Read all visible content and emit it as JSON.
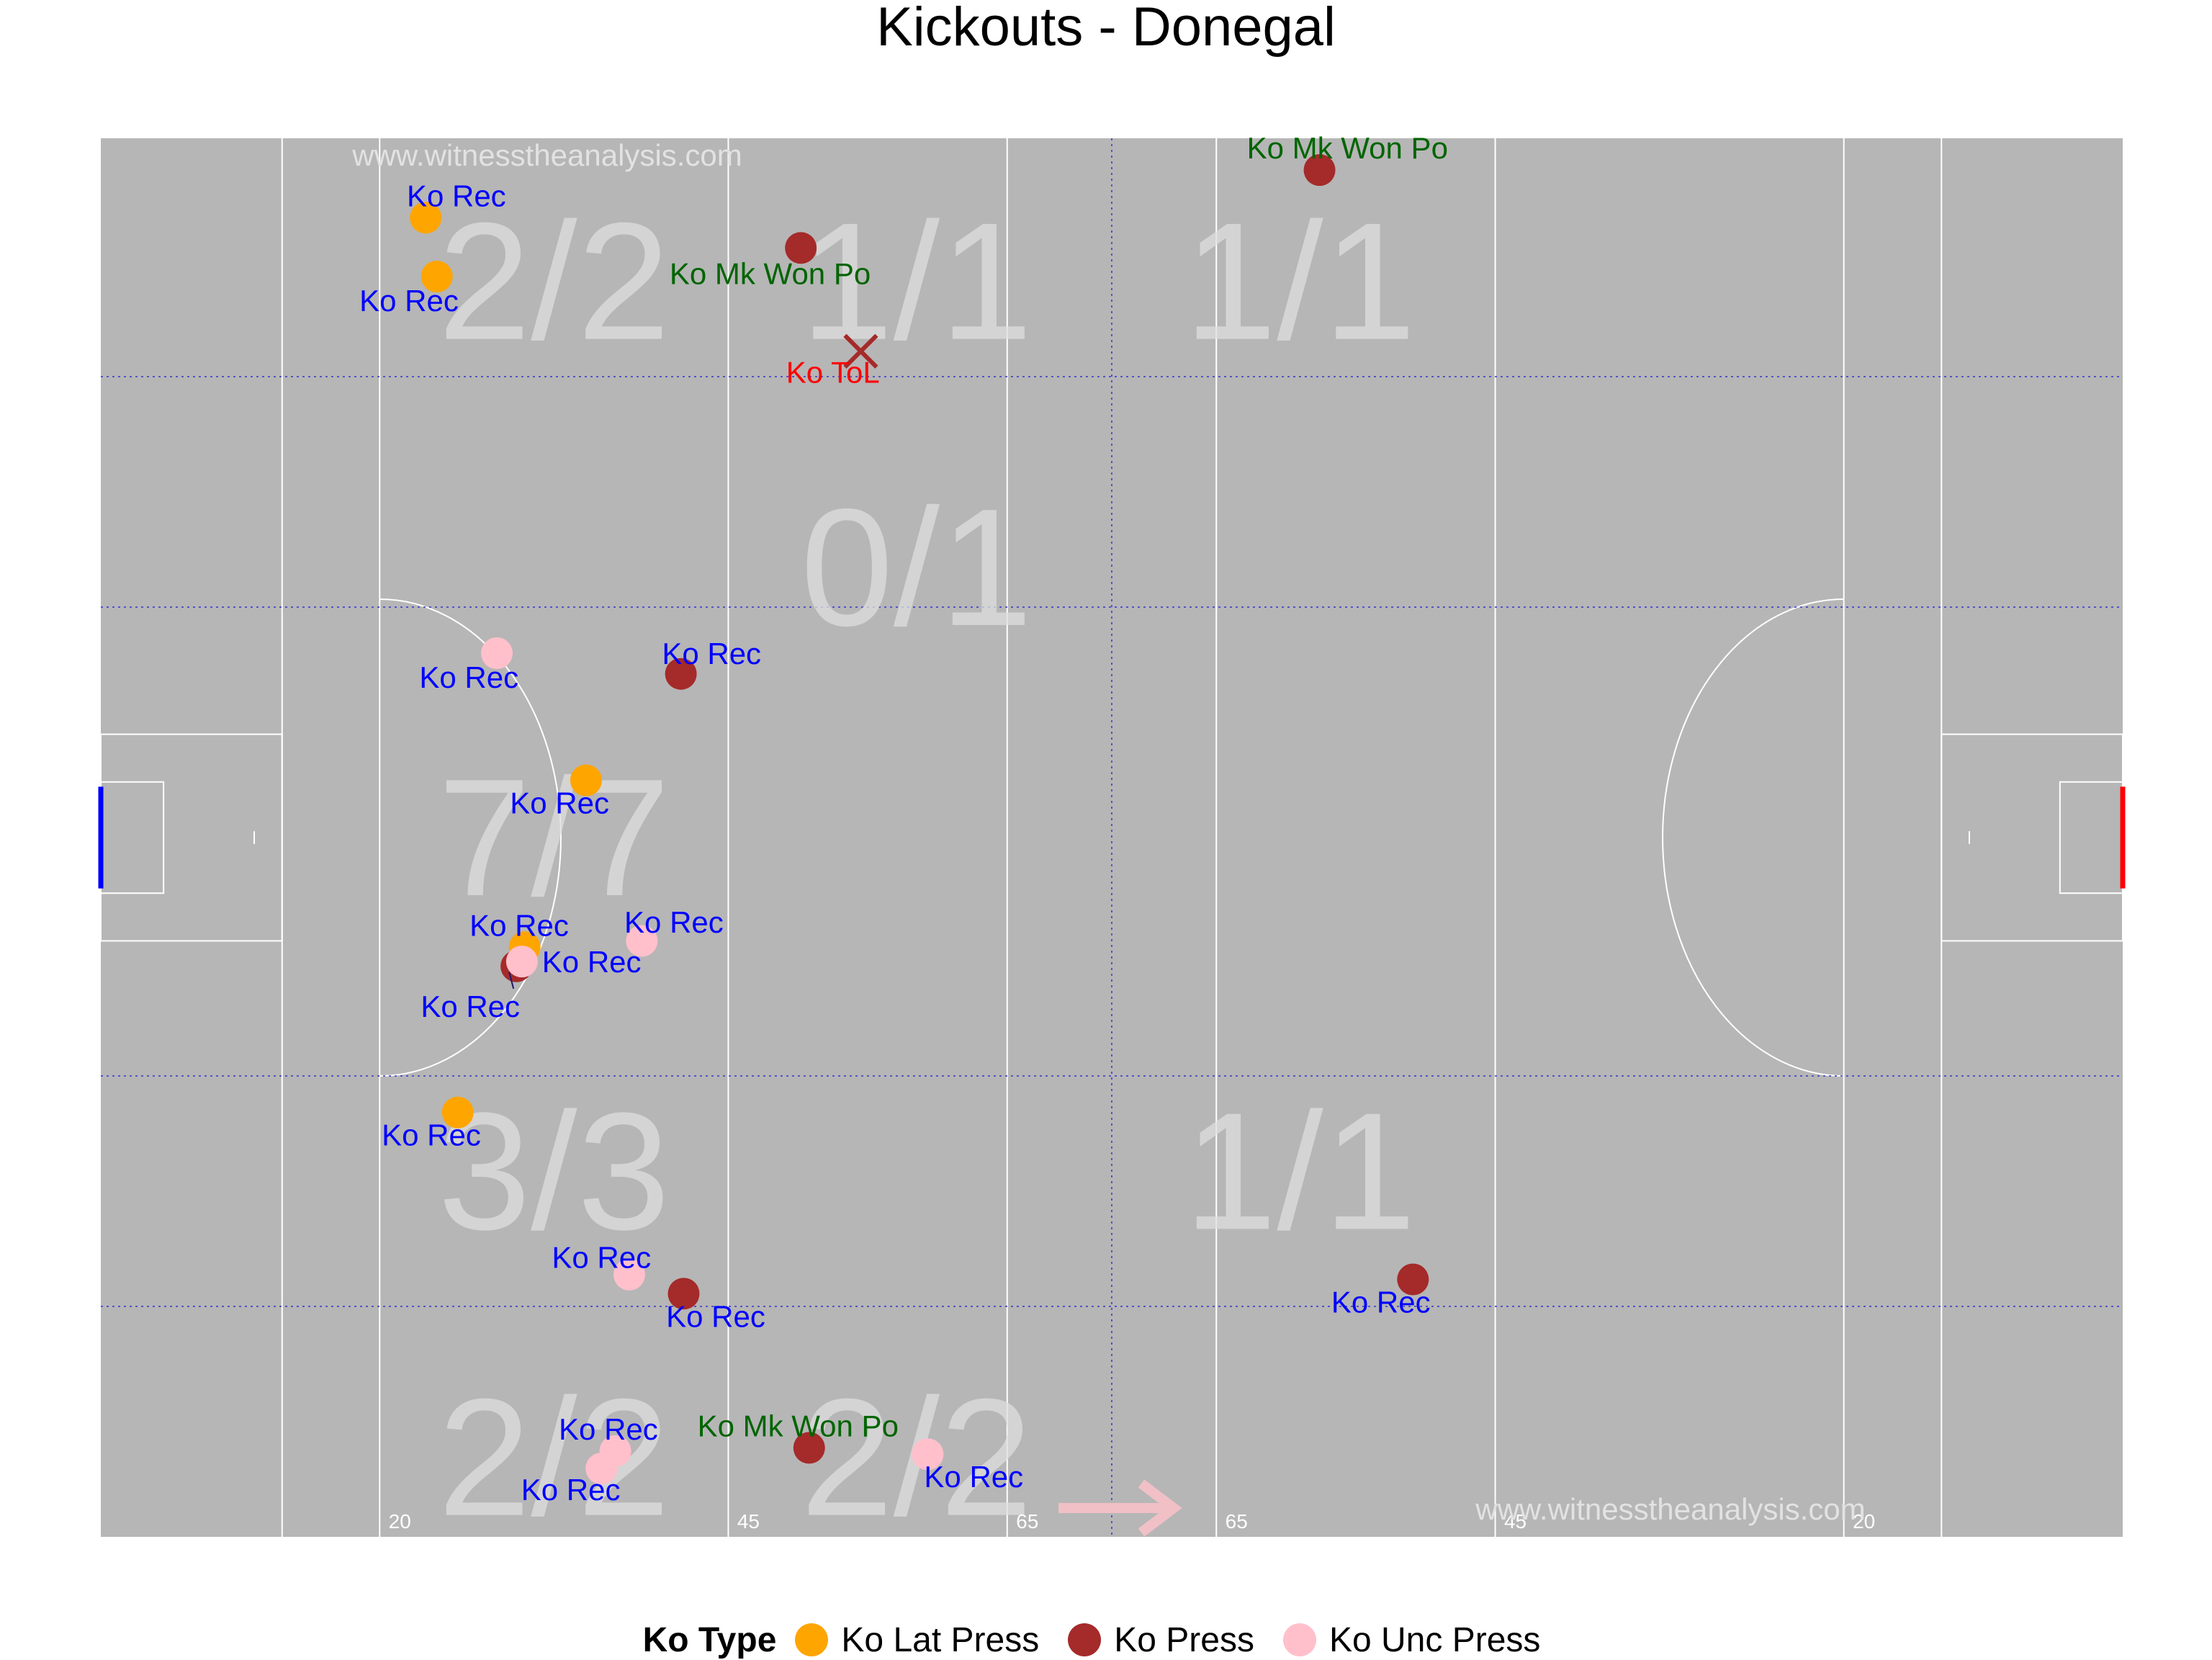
{
  "title": "Kickouts - Donegal",
  "watermark": "www.witnesstheanalysis.com",
  "colors": {
    "pitch": "#b6b6b6",
    "lines": "#ffffff",
    "zone_lines": "#3333cc",
    "zone_text": "#dedede",
    "Ko Lat Press": "#ffa500",
    "Ko Press": "#a52a2a",
    "Ko Unc Press": "#ffc0cb",
    "label_rec": "#0000ff",
    "label_won": "#006400",
    "label_tol": "#ff0000",
    "left_goal": "#0000ff",
    "right_goal": "#ff0000"
  },
  "legend": {
    "title": "Ko Type",
    "items": [
      "Ko Lat Press",
      "Ko Press",
      "Ko Unc Press"
    ]
  },
  "chart_data": {
    "type": "scatter",
    "title": "Kickouts - Donegal",
    "x_unit": "metres from left end line",
    "y_unit": "metres across pitch",
    "xlim": [
      0,
      145
    ],
    "ylim": [
      0,
      88
    ],
    "distance_markers": [
      {
        "x": 20,
        "label": "20"
      },
      {
        "x": 45,
        "label": "45"
      },
      {
        "x": 65,
        "label": "65"
      },
      {
        "x": 80,
        "label": "65"
      },
      {
        "x": 100,
        "label": "45"
      },
      {
        "x": 125,
        "label": "20"
      }
    ],
    "zone_counts": [
      {
        "x": 32.5,
        "y": 79,
        "label": "2/2"
      },
      {
        "x": 58.5,
        "y": 79,
        "label": "1/1"
      },
      {
        "x": 86,
        "y": 79,
        "label": "1/1"
      },
      {
        "x": 58.5,
        "y": 61,
        "label": "0/1"
      },
      {
        "x": 32.5,
        "y": 44,
        "label": "7/7"
      },
      {
        "x": 32.5,
        "y": 23,
        "label": "3/3"
      },
      {
        "x": 86,
        "y": 23,
        "label": "1/1"
      },
      {
        "x": 32.5,
        "y": 5,
        "label": "2/2"
      },
      {
        "x": 58.5,
        "y": 5,
        "label": "2/2"
      }
    ],
    "points": [
      {
        "x": 23.3,
        "y": 83.0,
        "type": "Ko Lat Press",
        "outcome": "Ko Rec",
        "label_dx": 2.2,
        "label_dy": 1.4
      },
      {
        "x": 24.1,
        "y": 79.3,
        "type": "Ko Lat Press",
        "outcome": "Ko Rec",
        "label_dx": -2.0,
        "label_dy": -1.5
      },
      {
        "x": 50.2,
        "y": 81.1,
        "type": "Ko Press",
        "outcome": "Ko Mk Won Po",
        "label_dx": -2.2,
        "label_dy": -1.6
      },
      {
        "x": 87.4,
        "y": 86.0,
        "type": "Ko Press",
        "outcome": "Ko Mk Won Po",
        "label_dx": 2.0,
        "label_dy": 1.4
      },
      {
        "x": 54.5,
        "y": 74.6,
        "type": "Ko Press",
        "outcome": "Ko ToL",
        "marker": "x",
        "label_dx": -2.0,
        "label_dy": -1.3
      },
      {
        "x": 28.4,
        "y": 55.6,
        "type": "Ko Unc Press",
        "outcome": "Ko Rec",
        "label_dx": -2.0,
        "label_dy": -1.5
      },
      {
        "x": 41.6,
        "y": 54.3,
        "type": "Ko Press",
        "outcome": "Ko Rec",
        "label_dx": 2.2,
        "label_dy": 1.3
      },
      {
        "x": 34.8,
        "y": 47.6,
        "type": "Ko Lat Press",
        "outcome": "Ko Rec",
        "label_dx": -1.9,
        "label_dy": -1.4
      },
      {
        "x": 30.4,
        "y": 37.1,
        "type": "Ko Lat Press",
        "outcome": "Ko Rec",
        "label_dx": -0.4,
        "label_dy": 1.4
      },
      {
        "x": 29.8,
        "y": 35.9,
        "type": "Ko Press",
        "outcome": "Ko Rec",
        "label_dx": -3.3,
        "label_dy": -2.5,
        "leader": true
      },
      {
        "x": 30.2,
        "y": 36.2,
        "type": "Ko Unc Press",
        "outcome": "Ko Rec",
        "label_dx": 5.0,
        "label_dy": 0.0
      },
      {
        "x": 38.8,
        "y": 37.5,
        "type": "Ko Unc Press",
        "outcome": "Ko Rec",
        "label_dx": 2.3,
        "label_dy": 1.2
      },
      {
        "x": 25.6,
        "y": 26.7,
        "type": "Ko Lat Press",
        "outcome": "Ko Rec",
        "label_dx": -1.9,
        "label_dy": -1.4
      },
      {
        "x": 37.9,
        "y": 16.5,
        "type": "Ko Unc Press",
        "outcome": "Ko Rec",
        "label_dx": -2.0,
        "label_dy": 1.1
      },
      {
        "x": 41.8,
        "y": 15.3,
        "type": "Ko Press",
        "outcome": "Ko Rec",
        "label_dx": 2.3,
        "label_dy": -1.4
      },
      {
        "x": 94.1,
        "y": 16.2,
        "type": "Ko Press",
        "outcome": "Ko Rec",
        "label_dx": -2.3,
        "label_dy": -1.4
      },
      {
        "x": 36.9,
        "y": 5.4,
        "type": "Ko Unc Press",
        "outcome": "Ko Rec",
        "label_dx": -0.5,
        "label_dy": 1.4
      },
      {
        "x": 35.9,
        "y": 4.3,
        "type": "Ko Unc Press",
        "outcome": "Ko Rec",
        "label_dx": -2.2,
        "label_dy": -1.3
      },
      {
        "x": 50.8,
        "y": 5.6,
        "type": "Ko Press",
        "outcome": "Ko Mk Won Po",
        "label_dx": -0.8,
        "label_dy": 1.4
      },
      {
        "x": 59.3,
        "y": 5.2,
        "type": "Ko Unc Press",
        "outcome": "Ko Rec",
        "label_dx": 3.3,
        "label_dy": -1.4
      }
    ]
  }
}
